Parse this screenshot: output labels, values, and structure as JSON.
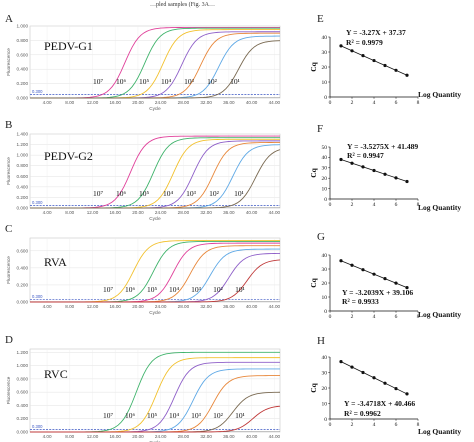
{
  "top_text": "…pled samples (Fig. 3A…",
  "amp_common": {
    "x_ticks": [
      "4.00",
      "8.00",
      "12.00",
      "16.00",
      "20.00",
      "24.00",
      "28.00",
      "32.00",
      "36.00",
      "40.00",
      "44.00"
    ],
    "x_label": "Cycle",
    "y_label": "Fluorescence",
    "threshold_label": "0.300"
  },
  "colors": {
    "series": [
      "#e0409a",
      "#3fb36b",
      "#f2c12e",
      "#8e5fc8",
      "#e8873a",
      "#5fa9e6",
      "#7a6a52",
      "#c03a3a"
    ],
    "threshold": "#3a56c4"
  },
  "chart_data": [
    {
      "type": "line",
      "panel": "A",
      "target": "PEDV-G1",
      "xlabel": "Cycle",
      "ylabel": "Fluorescence",
      "y_ticks": [
        "0.000",
        "0.200",
        "0.400",
        "0.600",
        "0.800",
        "1.000"
      ],
      "xlim": [
        1,
        45
      ],
      "ylim": [
        0,
        1.0
      ],
      "threshold": 0.05,
      "dilution_labels": [
        "10⁷",
        "10⁶",
        "10⁵",
        "10⁴",
        "10³",
        "10²",
        "10¹"
      ],
      "series": [
        {
          "ct": 15.5,
          "plateau": 0.98
        },
        {
          "ct": 19.0,
          "plateau": 0.97
        },
        {
          "ct": 22.2,
          "plateau": 0.95
        },
        {
          "ct": 25.5,
          "plateau": 0.92
        },
        {
          "ct": 28.8,
          "plateau": 0.9
        },
        {
          "ct": 32.0,
          "plateau": 0.86
        },
        {
          "ct": 35.5,
          "plateau": 0.8
        }
      ]
    },
    {
      "type": "line",
      "panel": "B",
      "target": "PEDV-G2",
      "xlabel": "Cycle",
      "ylabel": "Fluorescence",
      "y_ticks": [
        "0.000",
        "0.200",
        "0.400",
        "0.600",
        "0.800",
        "1.000",
        "1.200",
        "1.400"
      ],
      "xlim": [
        1,
        45
      ],
      "ylim": [
        0,
        1.4
      ],
      "threshold": 0.05,
      "dilution_labels": [
        "10⁷",
        "10⁶",
        "10⁵",
        "10⁴",
        "10³",
        "10²",
        "10¹"
      ],
      "series": [
        {
          "ct": 16.5,
          "plateau": 1.36
        },
        {
          "ct": 20.5,
          "plateau": 1.33
        },
        {
          "ct": 24.0,
          "plateau": 1.3
        },
        {
          "ct": 27.5,
          "plateau": 1.27
        },
        {
          "ct": 31.0,
          "plateau": 1.24
        },
        {
          "ct": 34.5,
          "plateau": 1.2
        },
        {
          "ct": 38.5,
          "plateau": 1.15
        }
      ]
    },
    {
      "type": "line",
      "panel": "C",
      "target": "RVA",
      "xlabel": "Cycle",
      "ylabel": "Fluorescence",
      "y_ticks": [
        "0.000",
        "0.200",
        "0.400",
        "0.600"
      ],
      "xlim": [
        1,
        45
      ],
      "ylim": [
        0,
        0.75
      ],
      "threshold": 0.03,
      "dilution_labels": [
        "10⁷",
        "10⁶",
        "10⁵",
        "10⁴",
        "10³",
        "10²",
        "10¹"
      ],
      "series": [
        {
          "ct": 17.0,
          "plateau": 0.72
        },
        {
          "ct": 20.5,
          "plateau": 0.71
        },
        {
          "ct": 24.0,
          "plateau": 0.69
        },
        {
          "ct": 27.0,
          "plateau": 0.66
        },
        {
          "ct": 30.5,
          "plateau": 0.62
        },
        {
          "ct": 33.8,
          "plateau": 0.57
        },
        {
          "ct": 37.0,
          "plateau": 0.5
        }
      ]
    },
    {
      "type": "line",
      "panel": "D",
      "target": "RVC",
      "xlabel": "Cycle",
      "ylabel": "Fluorescence",
      "y_ticks": [
        "0.000",
        "0.200",
        "0.400",
        "0.600",
        "0.800",
        "1.000",
        "1.200"
      ],
      "xlim": [
        1,
        45
      ],
      "ylim": [
        0,
        1.25
      ],
      "threshold": 0.04,
      "dilution_labels": [
        "10⁷",
        "10⁶",
        "10⁵",
        "10⁴",
        "10³",
        "10²",
        "10¹"
      ],
      "series": [
        {
          "ct": 17.5,
          "plateau": 1.2
        },
        {
          "ct": 21.0,
          "plateau": 1.12
        },
        {
          "ct": 24.2,
          "plateau": 1.05
        },
        {
          "ct": 27.5,
          "plateau": 0.95
        },
        {
          "ct": 31.0,
          "plateau": 0.85
        },
        {
          "ct": 34.5,
          "plateau": 0.6
        },
        {
          "ct": 38.0,
          "plateau": 0.4
        }
      ]
    },
    {
      "type": "scatter",
      "panel": "E",
      "xlabel": "Log Quantity",
      "ylabel": "Cq",
      "equation": "Y = -3.27X + 37.37",
      "r2": "R² = 0.9979",
      "x_ticks": [
        "0",
        "2",
        "4",
        "6",
        "8"
      ],
      "y_ticks": [
        "0",
        "10",
        "20",
        "30",
        "40"
      ],
      "xlim": [
        0,
        8
      ],
      "ylim": [
        0,
        40
      ],
      "x": [
        1,
        2,
        3,
        4,
        5,
        6,
        7
      ],
      "y": [
        34.1,
        30.8,
        27.6,
        24.3,
        21.0,
        17.8,
        14.5
      ],
      "fit": {
        "slope": -3.27,
        "intercept": 37.37
      }
    },
    {
      "type": "scatter",
      "panel": "F",
      "xlabel": "Log Quantity",
      "ylabel": "Cq",
      "equation": "Y = -3.5275X + 41.489",
      "r2": "R² = 0.9947",
      "x_ticks": [
        "0",
        "2",
        "4",
        "6",
        "8"
      ],
      "y_ticks": [
        "0",
        "10",
        "20",
        "30",
        "40",
        "50"
      ],
      "xlim": [
        0,
        8
      ],
      "ylim": [
        0,
        50
      ],
      "x": [
        1,
        2,
        3,
        4,
        5,
        6,
        7
      ],
      "y": [
        38.0,
        34.4,
        30.9,
        27.4,
        23.8,
        20.3,
        16.8
      ],
      "fit": {
        "slope": -3.5275,
        "intercept": 41.489
      }
    },
    {
      "type": "scatter",
      "panel": "G",
      "xlabel": "Log Quantity",
      "ylabel": "Cq",
      "equation": "Y = -3.2039X + 39.106",
      "r2": "R² = 0.9933",
      "x_ticks": [
        "0",
        "2",
        "4",
        "6",
        "8"
      ],
      "y_ticks": [
        "0",
        "10",
        "20",
        "30",
        "40"
      ],
      "xlim": [
        0,
        8
      ],
      "ylim": [
        0,
        40
      ],
      "x": [
        1,
        2,
        3,
        4,
        5,
        6,
        7
      ],
      "y": [
        35.9,
        32.7,
        29.5,
        26.3,
        23.1,
        19.9,
        16.7
      ],
      "fit": {
        "slope": -3.2039,
        "intercept": 39.106
      }
    },
    {
      "type": "scatter",
      "panel": "H",
      "xlabel": "Log Quantity",
      "ylabel": "Cq",
      "equation": "Y = -3.4718X + 40.466",
      "r2": "R² = 0.9962",
      "x_ticks": [
        "0",
        "2",
        "4",
        "6",
        "8"
      ],
      "y_ticks": [
        "0",
        "10",
        "20",
        "30",
        "40"
      ],
      "xlim": [
        0,
        8
      ],
      "ylim": [
        0,
        40
      ],
      "x": [
        1,
        2,
        3,
        4,
        5,
        6,
        7
      ],
      "y": [
        37.0,
        33.5,
        30.0,
        26.6,
        23.1,
        19.6,
        16.2
      ],
      "fit": {
        "slope": -3.4718,
        "intercept": 40.466
      }
    }
  ]
}
